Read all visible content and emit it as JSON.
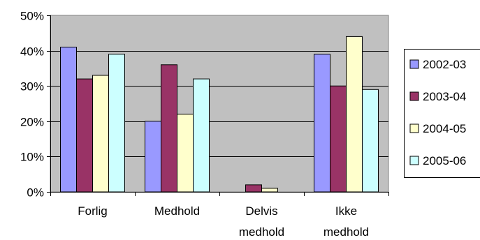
{
  "chart_data": {
    "type": "bar",
    "categories": [
      [
        "Forlig"
      ],
      [
        "Medhold"
      ],
      [
        "Delvis",
        "medhold"
      ],
      [
        "Ikke",
        "medhold"
      ]
    ],
    "series": [
      {
        "name": "2002-03",
        "color": "#9999ff",
        "values": [
          41,
          20,
          0,
          39
        ]
      },
      {
        "name": "2003-04",
        "color": "#993366",
        "values": [
          32,
          36,
          2,
          30
        ]
      },
      {
        "name": "2004-05",
        "color": "#ffffcc",
        "values": [
          33,
          22,
          1,
          44
        ]
      },
      {
        "name": "2005-06",
        "color": "#ccffff",
        "values": [
          39,
          32,
          0,
          29
        ]
      }
    ],
    "ylim": [
      0,
      50
    ],
    "yticks": [
      0,
      10,
      20,
      30,
      40,
      50
    ],
    "ytick_labels": [
      "0%",
      "10%",
      "20%",
      "30%",
      "40%",
      "50%"
    ],
    "title": "",
    "xlabel": "",
    "ylabel": "",
    "grid": true,
    "plot_background": "#c0c0c0",
    "legend_position": "right"
  }
}
